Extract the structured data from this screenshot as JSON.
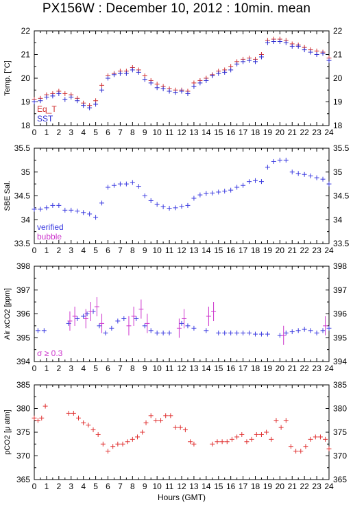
{
  "title": "PX156W : December 10, 2012 : 10min. mean",
  "colors": {
    "eq_t": "#d03030",
    "sst": "#2a2ad0",
    "verified": "#3a3ae0",
    "bubble": "#cc33cc",
    "pco2": "#e03030"
  },
  "chart_data": [
    {
      "type": "scatter",
      "ylabel": "Temp. [°C]",
      "ylim": [
        18,
        22
      ],
      "yticks": [
        18,
        19,
        20,
        21,
        22
      ],
      "xlim": [
        0,
        24
      ],
      "legend": {
        "placement": "bottom-left",
        "entries": [
          "Eq_T",
          "SST"
        ]
      },
      "series": [
        {
          "name": "Eq_T",
          "x": [
            0.0,
            0.5,
            1.0,
            1.5,
            2.0,
            2.5,
            3.0,
            3.5,
            4.0,
            4.5,
            5.0,
            5.5,
            6.0,
            6.5,
            7.0,
            7.5,
            8.0,
            8.5,
            9.0,
            9.5,
            10.0,
            10.5,
            11.0,
            11.5,
            12.0,
            12.5,
            13.0,
            13.5,
            14.0,
            14.5,
            15.0,
            15.5,
            16.0,
            16.5,
            17.0,
            17.5,
            18.0,
            18.5,
            19.0,
            19.5,
            20.0,
            20.5,
            21.0,
            21.5,
            22.0,
            22.5,
            23.0,
            23.5,
            24.0
          ],
          "y": [
            19.1,
            19.15,
            19.3,
            19.35,
            19.45,
            19.35,
            19.3,
            19.15,
            18.95,
            18.85,
            19.05,
            19.7,
            20.1,
            20.2,
            20.3,
            20.3,
            20.45,
            20.35,
            20.1,
            19.9,
            19.75,
            19.65,
            19.55,
            19.5,
            19.5,
            19.45,
            19.8,
            19.9,
            20.0,
            20.15,
            20.3,
            20.35,
            20.5,
            20.7,
            20.8,
            20.85,
            20.8,
            21.0,
            21.6,
            21.65,
            21.65,
            21.6,
            21.45,
            21.4,
            21.3,
            21.2,
            21.15,
            21.1,
            20.85
          ]
        },
        {
          "name": "SST",
          "x": [
            0.0,
            0.5,
            1.0,
            1.5,
            2.0,
            2.5,
            3.0,
            3.5,
            4.0,
            4.5,
            5.0,
            5.5,
            6.0,
            6.5,
            7.0,
            7.5,
            8.0,
            8.5,
            9.0,
            9.5,
            10.0,
            10.5,
            11.0,
            11.5,
            12.0,
            12.5,
            13.0,
            13.5,
            14.0,
            14.5,
            15.0,
            15.5,
            16.0,
            16.5,
            17.0,
            17.5,
            18.0,
            18.5,
            19.0,
            19.5,
            20.0,
            20.5,
            21.0,
            21.5,
            22.0,
            22.5,
            23.0,
            23.5,
            24.0
          ],
          "y": [
            19.0,
            19.05,
            19.2,
            19.25,
            19.35,
            19.1,
            19.2,
            19.05,
            18.85,
            18.75,
            18.9,
            19.5,
            20.0,
            20.15,
            20.2,
            20.2,
            20.35,
            20.25,
            19.95,
            19.8,
            19.6,
            19.55,
            19.45,
            19.4,
            19.45,
            19.35,
            19.65,
            19.8,
            19.9,
            20.1,
            20.2,
            20.25,
            20.35,
            20.6,
            20.7,
            20.75,
            20.7,
            20.9,
            21.5,
            21.55,
            21.55,
            21.5,
            21.35,
            21.35,
            21.2,
            21.1,
            21.0,
            21.05,
            20.75
          ]
        }
      ]
    },
    {
      "type": "scatter",
      "ylabel": "SBE Sal.",
      "ylim": [
        33.5,
        35.5
      ],
      "yticks": [
        33.5,
        34,
        34.5,
        35,
        35.5
      ],
      "xlim": [
        0,
        24
      ],
      "legend": {
        "placement": "bottom-left",
        "entries": [
          "verified",
          "bubble"
        ]
      },
      "series": [
        {
          "name": "verified",
          "x": [
            0.0,
            0.5,
            1.0,
            1.5,
            2.0,
            2.5,
            3.0,
            3.5,
            4.0,
            4.5,
            5.0,
            5.5,
            6.0,
            6.5,
            7.0,
            7.5,
            8.0,
            8.5,
            9.0,
            9.5,
            10.0,
            10.5,
            11.0,
            11.5,
            12.0,
            12.5,
            13.0,
            13.5,
            14.0,
            14.5,
            15.0,
            15.5,
            16.0,
            16.5,
            17.0,
            17.5,
            18.0,
            18.5,
            19.0,
            19.5,
            20.0,
            20.5,
            21.0,
            21.5,
            22.0,
            22.5,
            23.0,
            23.5,
            24.0
          ],
          "y": [
            34.22,
            34.22,
            34.25,
            34.3,
            34.3,
            34.2,
            34.2,
            34.18,
            34.15,
            34.12,
            34.05,
            34.35,
            34.68,
            34.72,
            34.75,
            34.75,
            34.78,
            34.7,
            34.5,
            34.4,
            34.32,
            34.27,
            34.24,
            34.25,
            34.28,
            34.3,
            34.45,
            34.52,
            34.55,
            34.56,
            34.58,
            34.6,
            34.62,
            34.68,
            34.72,
            34.8,
            34.82,
            34.8,
            35.1,
            35.22,
            35.25,
            35.25,
            35.0,
            34.97,
            34.95,
            34.92,
            34.88,
            34.85,
            34.75
          ]
        }
      ]
    },
    {
      "type": "scatter",
      "ylabel": "Air xCO2 [ppm]",
      "ylim": [
        394,
        398
      ],
      "yticks": [
        394,
        395,
        396,
        397,
        398
      ],
      "xlim": [
        0,
        24
      ],
      "annotation": "σ ≥ 0.3",
      "series": [
        {
          "name": "verified",
          "x": [
            0.3,
            0.8,
            2.8,
            3.5,
            4.0,
            4.3,
            4.8,
            5.3,
            5.8,
            6.3,
            6.8,
            7.3,
            8.3,
            9.0,
            9.5,
            10.0,
            10.5,
            11.0,
            12.0,
            12.5,
            13.0,
            14.0,
            15.0,
            15.5,
            16.0,
            16.5,
            17.0,
            17.5,
            18.0,
            18.5,
            19.0,
            20.0,
            20.5,
            21.0,
            21.5,
            22.0,
            22.5,
            23.0,
            23.5,
            24.0
          ],
          "y": [
            395.3,
            395.3,
            395.6,
            395.8,
            395.9,
            396.0,
            396.1,
            395.5,
            395.2,
            395.4,
            395.7,
            395.8,
            395.8,
            395.5,
            395.3,
            395.2,
            395.2,
            395.2,
            395.6,
            395.5,
            395.4,
            395.3,
            395.2,
            395.2,
            395.2,
            395.2,
            395.2,
            395.2,
            395.15,
            395.15,
            395.15,
            395.1,
            395.2,
            395.25,
            395.3,
            395.35,
            395.3,
            395.2,
            395.3,
            395.4
          ]
        },
        {
          "name": "bubble",
          "x": [
            2.9,
            3.3,
            4.2,
            4.6,
            5.1,
            5.5,
            7.7,
            8.1,
            8.7,
            9.2,
            11.8,
            12.2,
            14.2,
            14.6,
            20.3,
            23.7
          ],
          "y": [
            395.7,
            395.9,
            395.8,
            396.1,
            396.3,
            395.6,
            395.5,
            395.9,
            396.2,
            395.6,
            395.4,
            395.8,
            395.9,
            396.1,
            395.1,
            395.5
          ]
        }
      ]
    },
    {
      "type": "scatter",
      "ylabel": "pCO2 [μ atm]",
      "ylim": [
        365,
        385
      ],
      "yticks": [
        365,
        370,
        375,
        380,
        385
      ],
      "xlim": [
        0,
        24
      ],
      "xticks": [
        0,
        1,
        2,
        3,
        4,
        5,
        6,
        7,
        8,
        9,
        10,
        11,
        12,
        13,
        14,
        15,
        16,
        17,
        18,
        19,
        20,
        21,
        22,
        23,
        24
      ],
      "xlabel": "Hours (GMT)",
      "series": [
        {
          "name": "pCO2",
          "x": [
            0.0,
            0.3,
            0.6,
            0.9,
            2.8,
            3.2,
            3.6,
            4.0,
            4.4,
            4.8,
            5.2,
            5.6,
            6.0,
            6.4,
            6.8,
            7.2,
            7.6,
            8.0,
            8.4,
            8.8,
            9.1,
            9.5,
            9.9,
            10.3,
            10.7,
            11.1,
            11.5,
            11.9,
            12.3,
            12.7,
            13.0,
            14.5,
            14.9,
            15.3,
            15.7,
            16.1,
            16.5,
            16.9,
            17.3,
            17.7,
            18.1,
            18.5,
            18.9,
            19.3,
            19.7,
            20.1,
            20.5,
            20.9,
            21.3,
            21.7,
            22.1,
            22.5,
            22.9,
            23.3,
            23.7,
            24.0
          ],
          "y": [
            378,
            377.5,
            378,
            380.5,
            379,
            379,
            378,
            377,
            376.5,
            375.5,
            374.5,
            372.5,
            371,
            372,
            372.5,
            372.5,
            373,
            373.5,
            374,
            375,
            377,
            378.5,
            377.5,
            377.5,
            378.5,
            378.5,
            376,
            376,
            375.5,
            373,
            372.5,
            372.5,
            373,
            373,
            373,
            373.5,
            374,
            374.5,
            373,
            373.5,
            374.5,
            374.5,
            375,
            373.5,
            377.5,
            376,
            377.5,
            372,
            371,
            371,
            372,
            373.5,
            374,
            374,
            373.5,
            371.5
          ]
        }
      ]
    }
  ]
}
